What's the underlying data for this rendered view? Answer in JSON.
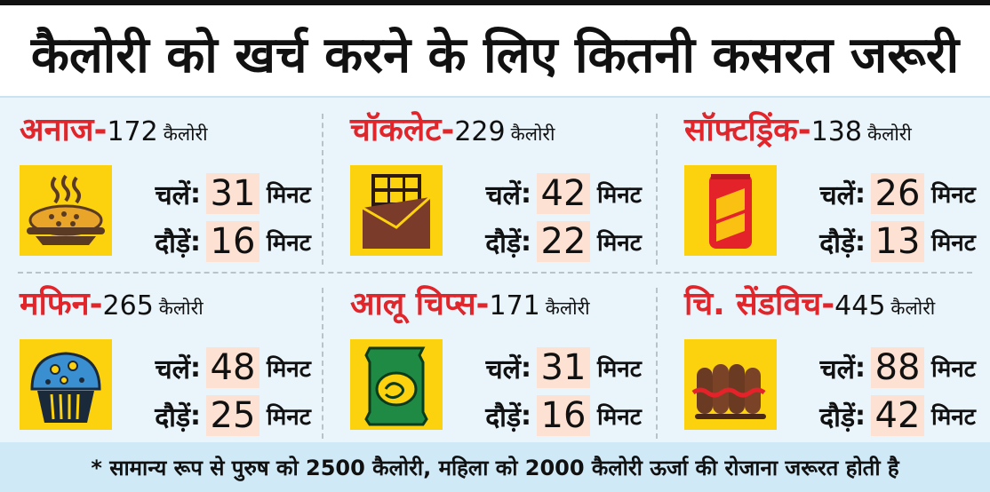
{
  "title": "कैलोरी को खर्च करने के लिए कितनी कसरत जरूरी",
  "calorie_unit": "कैलोरी",
  "walk_label": "चलें",
  "run_label": "दौड़ें",
  "minute_label": "मिनट",
  "colors": {
    "name_red": "#e0252b",
    "icon_yellow": "#fcd20f",
    "highlight": "#fde2d3",
    "panel_bg": "#eaf5fb",
    "footer_bg": "#cfe9f6"
  },
  "items": [
    {
      "name": "अनाज-",
      "calories": "172",
      "walk": "31",
      "run": "16",
      "icon": "grain-bowl-icon"
    },
    {
      "name": "चॉकलेट-",
      "calories": "229",
      "walk": "42",
      "run": "22",
      "icon": "chocolate-bar-icon"
    },
    {
      "name": "सॉफ्टड्रिंक-",
      "calories": "138",
      "walk": "26",
      "run": "13",
      "icon": "soft-drink-can-icon"
    },
    {
      "name": "मफिन-",
      "calories": "265",
      "walk": "48",
      "run": "25",
      "icon": "muffin-icon"
    },
    {
      "name": "आलू चिप्स-",
      "calories": "171",
      "walk": "31",
      "run": "16",
      "icon": "chips-packet-icon"
    },
    {
      "name": "चि. सेंडविच-",
      "calories": "445",
      "walk": "88",
      "run": "42",
      "icon": "sandwich-icon"
    }
  ],
  "footnote": "* सामान्य रूप से पुरुष को 2500 कैलोरी, महिला को 2000 कैलोरी ऊर्जा की रोजाना जरूरत होती है"
}
